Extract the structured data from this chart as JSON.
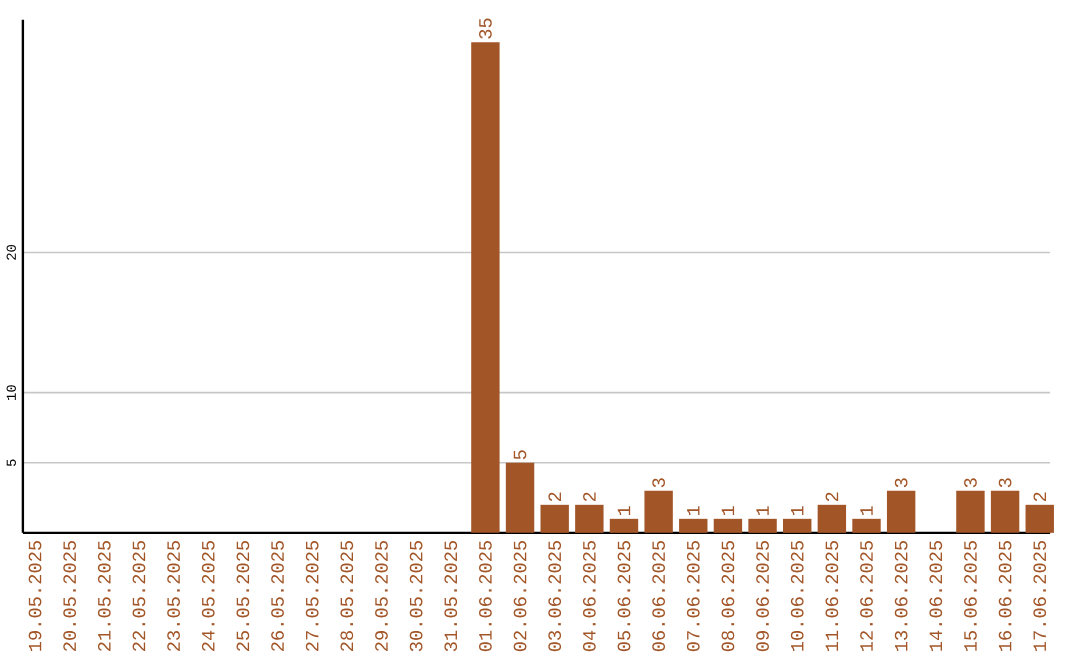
{
  "chart_data": {
    "type": "bar",
    "categories": [
      "19.05.2025",
      "20.05.2025",
      "21.05.2025",
      "22.05.2025",
      "23.05.2025",
      "24.05.2025",
      "25.05.2025",
      "26.05.2025",
      "27.05.2025",
      "28.05.2025",
      "29.05.2025",
      "30.05.2025",
      "31.05.2025",
      "01.06.2025",
      "02.06.2025",
      "03.06.2025",
      "04.06.2025",
      "05.06.2025",
      "06.06.2025",
      "07.06.2025",
      "08.06.2025",
      "09.06.2025",
      "10.06.2025",
      "11.06.2025",
      "12.06.2025",
      "13.06.2025",
      "14.06.2025",
      "15.06.2025",
      "16.06.2025",
      "17.06.2025"
    ],
    "values": [
      0,
      0,
      0,
      0,
      0,
      0,
      0,
      0,
      0,
      0,
      0,
      0,
      0,
      35,
      5,
      2,
      2,
      1,
      3,
      1,
      1,
      1,
      1,
      2,
      1,
      3,
      0,
      3,
      3,
      2
    ],
    "value_labels": [
      null,
      null,
      null,
      null,
      null,
      null,
      null,
      null,
      null,
      null,
      null,
      null,
      null,
      "35",
      "5",
      "2",
      "2",
      "1",
      "3",
      "1",
      "1",
      "1",
      "1",
      "2",
      "1",
      "3",
      null,
      "3",
      "3",
      "2"
    ],
    "color": "#a25628",
    "ylim": [
      0,
      36.6
    ],
    "yticks": [
      5,
      10,
      20
    ],
    "grid": "y"
  }
}
